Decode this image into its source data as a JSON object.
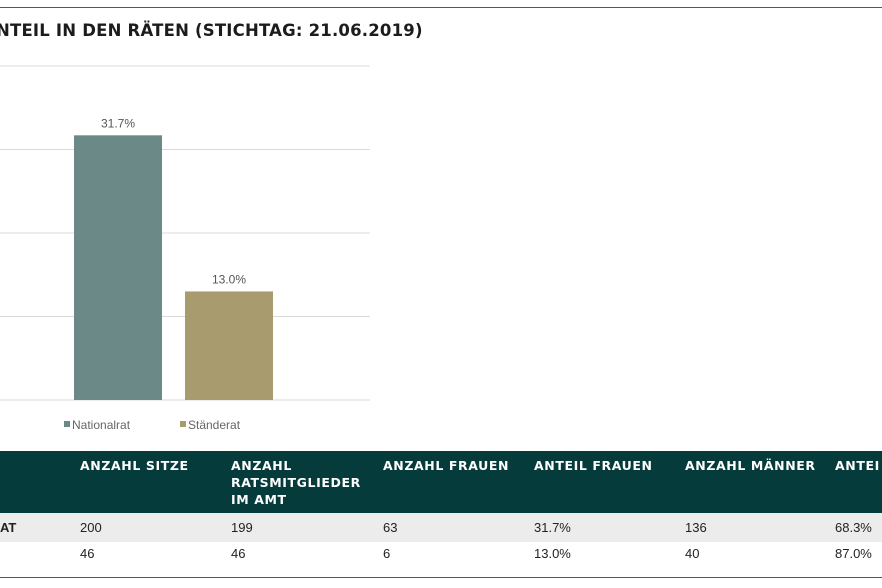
{
  "header": {
    "title": "NTEIL IN DEN RÄTEN (STICHTAG: 21.06.2019)"
  },
  "chart_data": {
    "type": "bar",
    "categories": [
      "Nationalrat",
      "Ständerat"
    ],
    "series": [
      {
        "name": "Nationalrat",
        "values": [
          31.7,
          null
        ],
        "color": "#6b8a87"
      },
      {
        "name": "Ständerat",
        "values": [
          null,
          13.0
        ],
        "color": "#a89c6e"
      }
    ],
    "data_labels": [
      "31.7%",
      "13.0%"
    ],
    "legend": [
      "Nationalrat",
      "Ständerat"
    ],
    "legend_position": "bottom",
    "ylim": [
      0,
      40
    ],
    "grid": true,
    "gridline_color": "#d9d9d9"
  },
  "table": {
    "columns": [
      "",
      "ANZAHL SITZE",
      "ANZAHL RATSMITGLIEDER IM AMT",
      "ANZAHL FRAUEN",
      "ANTEIL FRAUEN",
      "ANZAHL MÄNNER",
      "ANTEI"
    ],
    "rows": [
      [
        "AT",
        "200",
        "199",
        "63",
        "31.7%",
        "136",
        "68.3%"
      ],
      [
        "",
        "46",
        "46",
        "6",
        "13.0%",
        "40",
        "87.0%"
      ]
    ]
  },
  "colors": {
    "table_header_bg": "#063b3b",
    "table_stripe": "#ececec"
  }
}
